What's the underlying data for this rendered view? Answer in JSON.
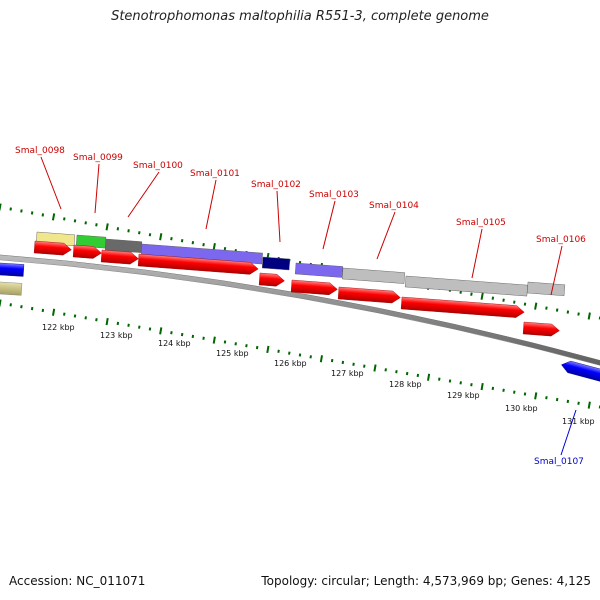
{
  "title": "Stenotrophomonas maltophilia R551-3, complete genome",
  "footer": {
    "accession": "Accession: NC_011071",
    "summary": "Topology: circular; Length: 4,573,969 bp; Genes: 4,125"
  },
  "colors": {
    "gene_label": "#cc0000",
    "gene_label_reverse": "#0000cc",
    "gene_arrow": "#ff0000",
    "reverse_arrow": "#0000ff",
    "backbone": "#888888",
    "tick_green": "#006600"
  },
  "kbp_ticks": [
    "122 kbp",
    "123 kbp",
    "124 kbp",
    "125 kbp",
    "126 kbp",
    "127 kbp",
    "128 kbp",
    "129 kbp",
    "130 kbp",
    "131 kbp"
  ],
  "genes": [
    {
      "label": "Smal_0098",
      "cog_color": "#f0e68c"
    },
    {
      "label": "Smal_0099",
      "cog_color": "#32cd32"
    },
    {
      "label": "Smal_0100",
      "cog_color": "#696969"
    },
    {
      "label": "Smal_0101",
      "cog_color": "#7b68ee"
    },
    {
      "label": "Smal_0102",
      "cog_color": "#000080"
    },
    {
      "label": "Smal_0103",
      "cog_color": "#7b68ee"
    },
    {
      "label": "Smal_0104",
      "cog_color": "#bebebe"
    },
    {
      "label": "Smal_0105",
      "cog_color": "#bebebe"
    },
    {
      "label": "Smal_0106",
      "cog_color": "#bebebe"
    }
  ],
  "reverse_genes": [
    {
      "label": "Smal_0107"
    }
  ]
}
